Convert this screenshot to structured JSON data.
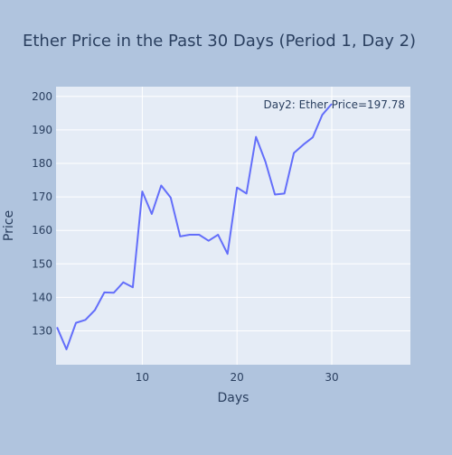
{
  "chart_data": {
    "type": "line",
    "title": "Ether Price in the Past 30 Days (Period 1, Day 2)",
    "xlabel": "Days",
    "ylabel": "Price",
    "xlim": [
      0.9,
      38.3
    ],
    "ylim": [
      119.9,
      202.9
    ],
    "x_ticks": [
      10,
      20,
      30
    ],
    "y_ticks": [
      130,
      140,
      150,
      160,
      170,
      180,
      190,
      200
    ],
    "grid": true,
    "legend": "none",
    "series": [
      {
        "x": [
          1,
          2,
          3,
          4,
          5,
          6,
          7,
          8,
          9,
          10,
          11,
          12,
          13,
          14,
          15,
          16,
          17,
          18,
          19,
          20,
          21,
          22,
          23,
          24,
          25,
          26,
          27,
          28,
          29,
          30
        ],
        "values": [
          131.1,
          124.5,
          132.4,
          133.3,
          136.2,
          141.5,
          141.4,
          144.5,
          143.0,
          171.6,
          164.9,
          173.4,
          169.8,
          158.2,
          158.7,
          158.7,
          156.9,
          158.7,
          153.0,
          172.8,
          171.0,
          187.9,
          180.5,
          170.7,
          171.0,
          183.1,
          185.6,
          187.8,
          194.5,
          197.78
        ]
      }
    ],
    "annotation": "Day2: Ether Price=197.78",
    "colors": {
      "background": "#b0c4de",
      "plot_background": "#e5ecf6",
      "grid": "#ffffff",
      "line": "#636efa",
      "text": "#2a3f5f"
    }
  }
}
